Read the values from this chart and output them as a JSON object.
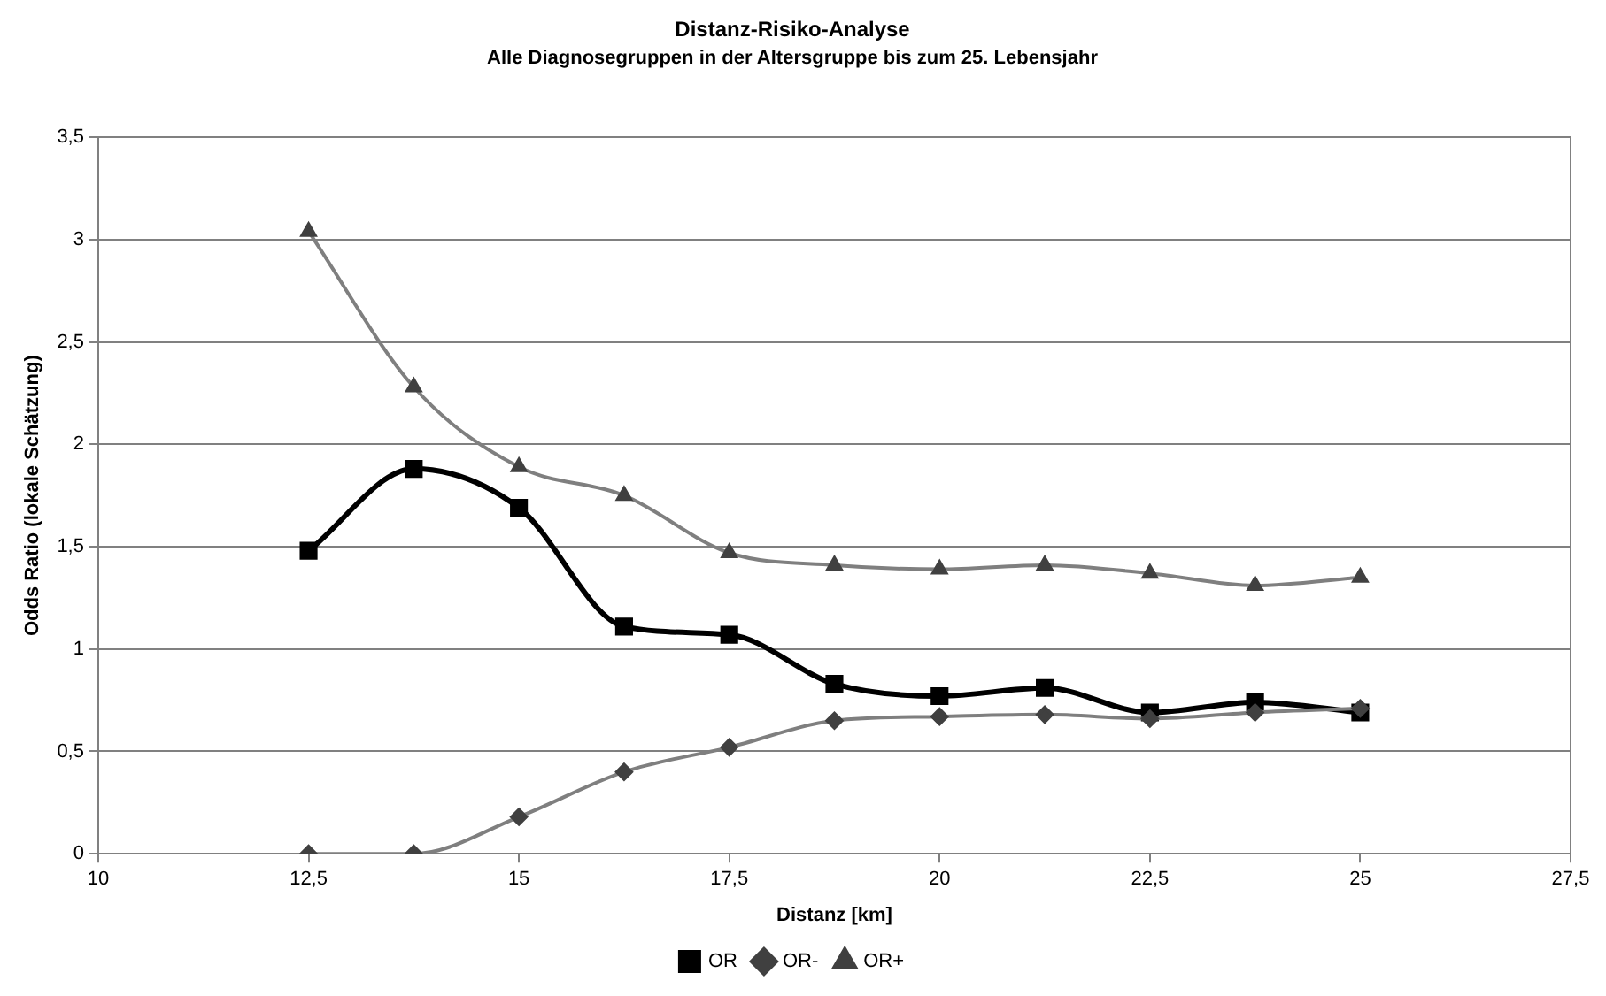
{
  "chart_data": {
    "type": "line",
    "title": "Distanz-Risiko-Analyse",
    "subtitle": "Alle Diagnosegruppen in der Altersgruppe bis zum 25. Lebensjahr",
    "xlabel": "Distanz [km]",
    "ylabel": "Odds Ratio (lokale Schätzung)",
    "x": [
      12.5,
      13.75,
      15,
      16.25,
      17.5,
      18.75,
      20,
      21.25,
      22.5,
      23.75,
      25
    ],
    "series": [
      {
        "name": "OR",
        "color": "#000000",
        "marker": "square",
        "values": [
          1.48,
          1.88,
          1.69,
          1.11,
          1.07,
          0.83,
          0.77,
          0.81,
          0.69,
          0.74,
          0.69
        ]
      },
      {
        "name": "OR-",
        "color": "#7f7f7f",
        "marker": "diamond",
        "values": [
          0,
          0,
          0.18,
          0.4,
          0.52,
          0.65,
          0.67,
          0.68,
          0.66,
          0.69,
          0.71
        ]
      },
      {
        "name": "OR+",
        "color": "#7f7f7f",
        "marker": "triangle",
        "values": [
          3.04,
          2.28,
          1.89,
          1.75,
          1.47,
          1.41,
          1.39,
          1.41,
          1.37,
          1.31,
          1.35
        ]
      }
    ],
    "xlim": [
      10,
      27.5
    ],
    "xticks": [
      10,
      {
        "value": 12.5,
        "label": "12,5"
      },
      15,
      {
        "value": 17.5,
        "label": "17,5"
      },
      20,
      {
        "value": 22.5,
        "label": "22,5"
      },
      25,
      {
        "value": 27.5,
        "label": "27,5"
      }
    ],
    "ylim": [
      0,
      3.5
    ],
    "yticks": [
      0,
      {
        "value": 0.5,
        "label": "0,5"
      },
      1,
      {
        "value": 1.5,
        "label": "1,5"
      },
      2,
      {
        "value": 2.5,
        "label": "2,5"
      },
      3,
      {
        "value": 3.5,
        "label": "3,5"
      }
    ],
    "grid": "y",
    "legend": "bottom"
  }
}
